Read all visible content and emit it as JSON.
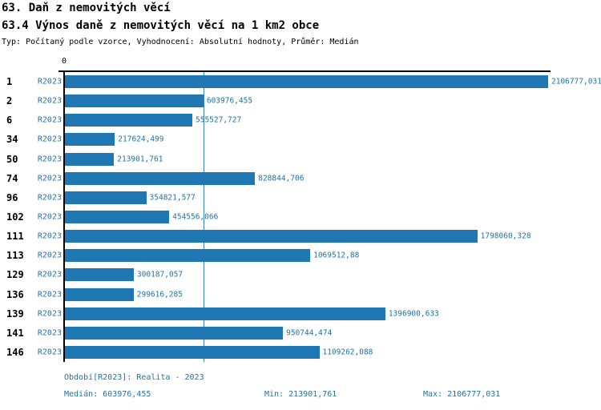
{
  "title": "63. Daň z nemovitých věcí",
  "subtitle": "63.4 Výnos daně z nemovitých věcí na 1 km2 obce",
  "meta": "Typ: Počítaný podle vzorce, Vyhodnocení: Absolutní hodnoty, Průměr: Medián",
  "colors": {
    "bar_fill": "#1f77b4",
    "median_line": "#3585bb",
    "blue_text": "#1e73a8",
    "axis": "#000000"
  },
  "chart_data": {
    "type": "bar",
    "orientation": "horizontal",
    "title": "63.4 Výnos daně z nemovitých věcí na 1 km2 obce",
    "x_axis_zero_label": "0",
    "series_label": "R2023",
    "categories": [
      "1",
      "2",
      "6",
      "34",
      "50",
      "74",
      "96",
      "102",
      "111",
      "113",
      "129",
      "136",
      "139",
      "141",
      "146"
    ],
    "values": [
      2106777.031,
      603976.455,
      555527.727,
      217624.499,
      213901.761,
      828844.706,
      354821.577,
      454556.066,
      1798060.328,
      1069512.88,
      300187.057,
      299616.285,
      1396900.633,
      950744.474,
      1109262.088
    ],
    "value_labels": [
      "2106777,031",
      "603976,455",
      "555527,727",
      "217624,499",
      "213901,761",
      "828844,706",
      "354821,577",
      "454556,066",
      "1798060,328",
      "1069512,88",
      "300187,057",
      "299616,285",
      "1396900,633",
      "950744,474",
      "1109262,088"
    ],
    "xlim": [
      0,
      2106777.031
    ],
    "median_value": 603976.455,
    "grid": false,
    "legend": false
  },
  "footer": {
    "period": "Období[R2023]: Realita - 2023",
    "median": "Medián: 603976,455",
    "min": "Min: 213901,761",
    "max": "Max: 2106777,031"
  }
}
